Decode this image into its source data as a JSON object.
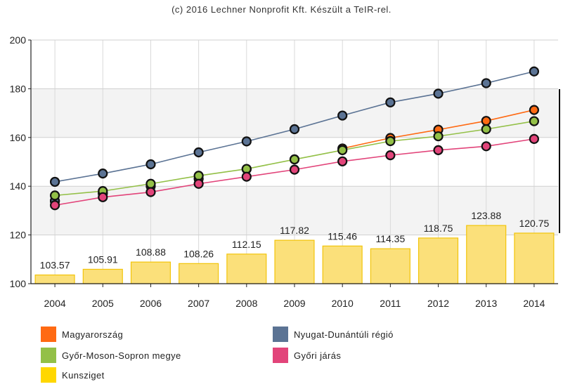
{
  "caption": "(c) 2016 Lechner Nonprofit Kft. Készült a TeIR-rel.",
  "chart_data": {
    "type": "bar+line",
    "categories": [
      "2004",
      "2005",
      "2006",
      "2007",
      "2008",
      "2009",
      "2010",
      "2011",
      "2012",
      "2013",
      "2014"
    ],
    "ylim": [
      100,
      200
    ],
    "yticks": [
      100,
      120,
      140,
      160,
      180,
      200
    ],
    "grid": true,
    "legend_placement": "bottom",
    "bar_series": {
      "name": "Kunsziget",
      "color": "#ffd700",
      "values": [
        103.57,
        105.91,
        108.88,
        108.26,
        112.15,
        117.82,
        115.46,
        114.35,
        118.75,
        123.88,
        120.75
      ],
      "labels": [
        "103.57",
        "105.91",
        "108.88",
        "108.26",
        "112.15",
        "117.82",
        "115.46",
        "114.35",
        "118.75",
        "123.88",
        "120.75"
      ]
    },
    "line_series": [
      {
        "name": "Magyarország",
        "color": "#ff6a13",
        "values": [
          null,
          null,
          null,
          null,
          null,
          null,
          155.5,
          159.8,
          163.2,
          166.8,
          171.3
        ]
      },
      {
        "name": "Nyugat-Dunántúli régió",
        "color": "#5b7394",
        "values": [
          141.8,
          145.2,
          149.0,
          153.9,
          158.4,
          163.4,
          169.0,
          174.4,
          178.0,
          182.3,
          187.1
        ]
      },
      {
        "name": "Győr-Moson-Sopron megye",
        "color": "#93c047",
        "values": [
          136.2,
          138.0,
          141.0,
          144.3,
          147.1,
          151.0,
          154.8,
          158.5,
          160.5,
          163.4,
          166.7
        ]
      },
      {
        "name": "Győri járás",
        "color": "#e2447a",
        "values": [
          132.2,
          135.5,
          137.6,
          141.0,
          143.9,
          146.8,
          150.2,
          152.7,
          154.8,
          156.4,
          159.4
        ]
      }
    ],
    "extra_markers": [
      {
        "color": "#ff6a13",
        "values": [
          134.0,
          137.0,
          140.0,
          143.0,
          147.0,
          151.0
        ]
      },
      {
        "color": "#5b7394",
        "values": [
          133.9,
          137.2,
          null,
          null,
          null,
          null
        ]
      }
    ]
  },
  "legend": [
    {
      "label": "Magyarország",
      "color": "#ff6a13"
    },
    {
      "label": "Nyugat-Dunántúli régió",
      "color": "#5b7394"
    },
    {
      "label": "Győr-Moson-Sopron megye",
      "color": "#93c047"
    },
    {
      "label": "Győri járás",
      "color": "#e2447a"
    },
    {
      "label": "Kunsziget",
      "color": "#ffd700"
    }
  ]
}
